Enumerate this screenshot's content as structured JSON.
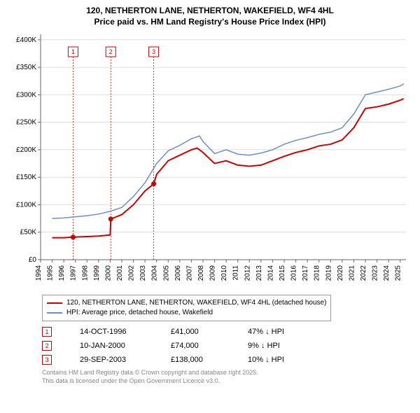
{
  "title_line1": "120, NETHERTON LANE, NETHERTON, WAKEFIELD, WF4 4HL",
  "title_line2": "Price paid vs. HM Land Registry's House Price Index (HPI)",
  "chart": {
    "type": "line",
    "background_color": "#ffffff",
    "grid_color": "#bfbfbf",
    "axis_color": "#666666",
    "x_years": [
      1994,
      1995,
      1996,
      1997,
      1998,
      1999,
      2000,
      2001,
      2002,
      2003,
      2004,
      2005,
      2006,
      2007,
      2008,
      2009,
      2010,
      2011,
      2012,
      2013,
      2014,
      2015,
      2016,
      2017,
      2018,
      2019,
      2020,
      2021,
      2022,
      2023,
      2024,
      2025
    ],
    "xlim": [
      1994,
      2025.5
    ],
    "y_ticks": [
      0,
      50000,
      100000,
      150000,
      200000,
      250000,
      300000,
      350000,
      400000
    ],
    "y_tick_labels": [
      "£0",
      "£50K",
      "£100K",
      "£150K",
      "£200K",
      "£250K",
      "£300K",
      "£350K",
      "£400K"
    ],
    "ylim": [
      0,
      410000
    ],
    "series_red": {
      "label": "120, NETHERTON LANE, NETHERTON, WAKEFIELD, WF4 4HL (detached house)",
      "color": "#cc0000",
      "width": 2,
      "points": [
        [
          1995,
          40000
        ],
        [
          1996,
          40000
        ],
        [
          1996.8,
          41000
        ],
        [
          1998,
          42000
        ],
        [
          1999,
          43000
        ],
        [
          2000,
          45000
        ],
        [
          2000.05,
          74000
        ],
        [
          2001,
          82000
        ],
        [
          2002,
          100000
        ],
        [
          2003,
          125000
        ],
        [
          2003.75,
          138000
        ],
        [
          2004,
          155000
        ],
        [
          2005,
          180000
        ],
        [
          2006,
          190000
        ],
        [
          2007,
          200000
        ],
        [
          2007.5,
          203000
        ],
        [
          2008,
          195000
        ],
        [
          2009,
          175000
        ],
        [
          2010,
          180000
        ],
        [
          2011,
          172000
        ],
        [
          2012,
          170000
        ],
        [
          2013,
          172000
        ],
        [
          2014,
          180000
        ],
        [
          2015,
          188000
        ],
        [
          2016,
          195000
        ],
        [
          2017,
          200000
        ],
        [
          2018,
          207000
        ],
        [
          2019,
          210000
        ],
        [
          2020,
          218000
        ],
        [
          2021,
          240000
        ],
        [
          2022,
          275000
        ],
        [
          2023,
          278000
        ],
        [
          2024,
          283000
        ],
        [
          2025,
          290000
        ],
        [
          2025.3,
          293000
        ]
      ],
      "markers": [
        [
          1996.8,
          41000
        ],
        [
          2000.05,
          74000
        ],
        [
          2003.75,
          138000
        ]
      ]
    },
    "series_blue": {
      "label": "HPI: Average price, detached house, Wakefield",
      "color": "#6a8fc5",
      "width": 1.5,
      "points": [
        [
          1995,
          75000
        ],
        [
          1996,
          76000
        ],
        [
          1997,
          78000
        ],
        [
          1998,
          80000
        ],
        [
          1999,
          83000
        ],
        [
          2000,
          88000
        ],
        [
          2001,
          95000
        ],
        [
          2002,
          115000
        ],
        [
          2003,
          140000
        ],
        [
          2004,
          175000
        ],
        [
          2005,
          198000
        ],
        [
          2006,
          208000
        ],
        [
          2007,
          220000
        ],
        [
          2007.7,
          225000
        ],
        [
          2008,
          215000
        ],
        [
          2009,
          193000
        ],
        [
          2010,
          200000
        ],
        [
          2011,
          192000
        ],
        [
          2012,
          190000
        ],
        [
          2013,
          194000
        ],
        [
          2014,
          200000
        ],
        [
          2015,
          210000
        ],
        [
          2016,
          217000
        ],
        [
          2017,
          222000
        ],
        [
          2018,
          228000
        ],
        [
          2019,
          232000
        ],
        [
          2020,
          240000
        ],
        [
          2021,
          265000
        ],
        [
          2022,
          300000
        ],
        [
          2023,
          305000
        ],
        [
          2024,
          310000
        ],
        [
          2025,
          316000
        ],
        [
          2025.3,
          320000
        ]
      ]
    },
    "annotations_on_chart": [
      {
        "n": "1",
        "x": 1996.8
      },
      {
        "n": "2",
        "x": 2000.05
      },
      {
        "n": "3",
        "x": 2003.75
      }
    ],
    "annotation_line_color": "#cc0000"
  },
  "legend": {
    "items": [
      {
        "color": "#cc0000",
        "label": "120, NETHERTON LANE, NETHERTON, WAKEFIELD, WF4 4HL (detached house)"
      },
      {
        "color": "#6a8fc5",
        "label": "HPI: Average price, detached house, Wakefield"
      }
    ]
  },
  "annotations_table": [
    {
      "n": "1",
      "date": "14-OCT-1996",
      "price": "£41,000",
      "diff": "47% ↓ HPI"
    },
    {
      "n": "2",
      "date": "10-JAN-2000",
      "price": "£74,000",
      "diff": "9% ↓ HPI"
    },
    {
      "n": "3",
      "date": "29-SEP-2003",
      "price": "£138,000",
      "diff": "10% ↓ HPI"
    }
  ],
  "footer_line1": "Contains HM Land Registry data © Crown copyright and database right 2025.",
  "footer_line2": "This data is licensed under the Open Government Licence v3.0."
}
